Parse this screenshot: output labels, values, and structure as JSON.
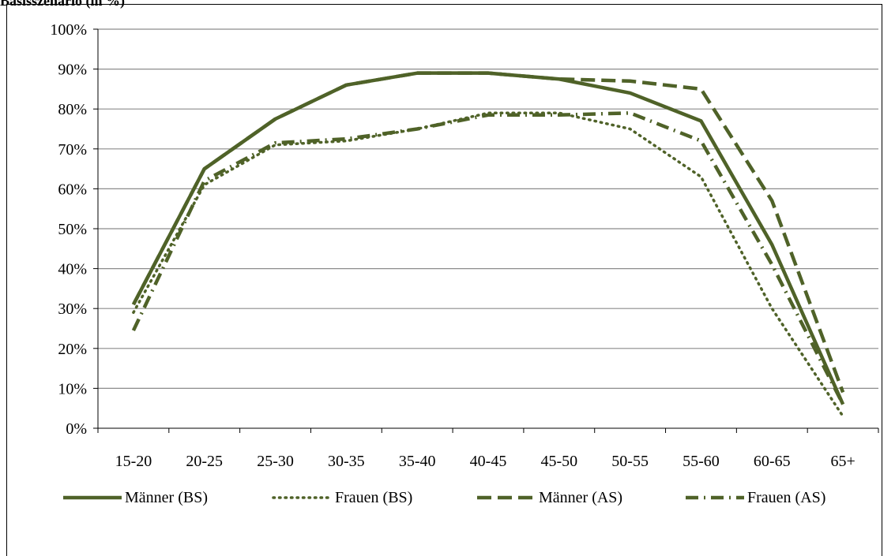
{
  "header": {
    "title_fragment": "Basisszenario (in %)"
  },
  "chart_data": {
    "type": "line",
    "title": "",
    "xlabel": "",
    "ylabel": "",
    "categories": [
      "15-20",
      "20-25",
      "25-30",
      "30-35",
      "35-40",
      "40-45",
      "45-50",
      "50-55",
      "55-60",
      "60-65",
      "65+"
    ],
    "ylim": [
      0,
      100
    ],
    "yticks": [
      0,
      10,
      20,
      30,
      40,
      50,
      60,
      70,
      80,
      90,
      100
    ],
    "ytick_labels": [
      "0%",
      "10%",
      "20%",
      "30%",
      "40%",
      "50%",
      "60%",
      "70%",
      "80%",
      "90%",
      "100%"
    ],
    "grid": true,
    "legend": "bottom",
    "color": "#4f6228",
    "series": [
      {
        "name": "Männer (BS)",
        "style": "solid",
        "values": [
          31,
          65,
          77.5,
          86,
          89,
          89,
          87.5,
          84,
          77,
          46,
          6
        ]
      },
      {
        "name": "Frauen (BS)",
        "style": "dotted",
        "values": [
          29,
          61,
          71,
          72,
          75,
          79,
          79,
          75,
          63,
          30,
          3
        ]
      },
      {
        "name": "Männer (AS)",
        "style": "dashed",
        "values": [
          31,
          65,
          77.5,
          86,
          89,
          89,
          87.5,
          87,
          85,
          57,
          9
        ]
      },
      {
        "name": "Frauen (AS)",
        "style": "dashdot",
        "values": [
          24.5,
          62,
          71.5,
          72.5,
          75,
          78.5,
          78.5,
          79,
          72,
          41,
          6
        ]
      }
    ]
  }
}
